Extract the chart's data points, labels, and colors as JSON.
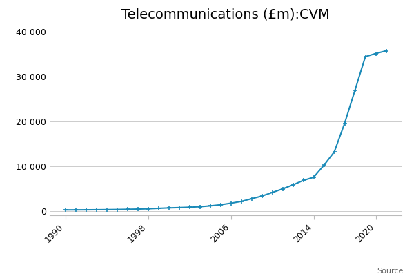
{
  "title": "Telecommunications (£m):CVM",
  "legend_label": "Telecommunications (£m):CVM",
  "source_text": "Source:",
  "line_color": "#1a8ab8",
  "marker": "+",
  "marker_color": "#1a8ab8",
  "background_color": "#ffffff",
  "grid_color": "#cccccc",
  "years": [
    1990,
    1991,
    1992,
    1993,
    1994,
    1995,
    1996,
    1997,
    1998,
    1999,
    2000,
    2001,
    2002,
    2003,
    2004,
    2005,
    2006,
    2007,
    2008,
    2009,
    2010,
    2011,
    2012,
    2013,
    2014,
    2015,
    2016,
    2017,
    2018,
    2019,
    2020,
    2021
  ],
  "values": [
    200,
    210,
    220,
    240,
    260,
    290,
    330,
    380,
    450,
    550,
    650,
    720,
    800,
    920,
    1100,
    1350,
    1700,
    2100,
    2700,
    3300,
    4100,
    4900,
    5800,
    6800,
    7500,
    10200,
    13200,
    19600,
    27000,
    34500,
    35200,
    35800
  ],
  "yticks": [
    0,
    10000,
    20000,
    30000,
    40000
  ],
  "ytick_labels": [
    "0",
    "10 000",
    "20 000",
    "30 000",
    "40 000"
  ],
  "xticks": [
    1990,
    1998,
    2006,
    2014,
    2020
  ],
  "ylim": [
    -1000,
    41000
  ],
  "xlim": [
    1988.5,
    2022.5
  ],
  "title_fontsize": 14,
  "tick_fontsize": 9,
  "legend_fontsize": 9,
  "source_fontsize": 8
}
